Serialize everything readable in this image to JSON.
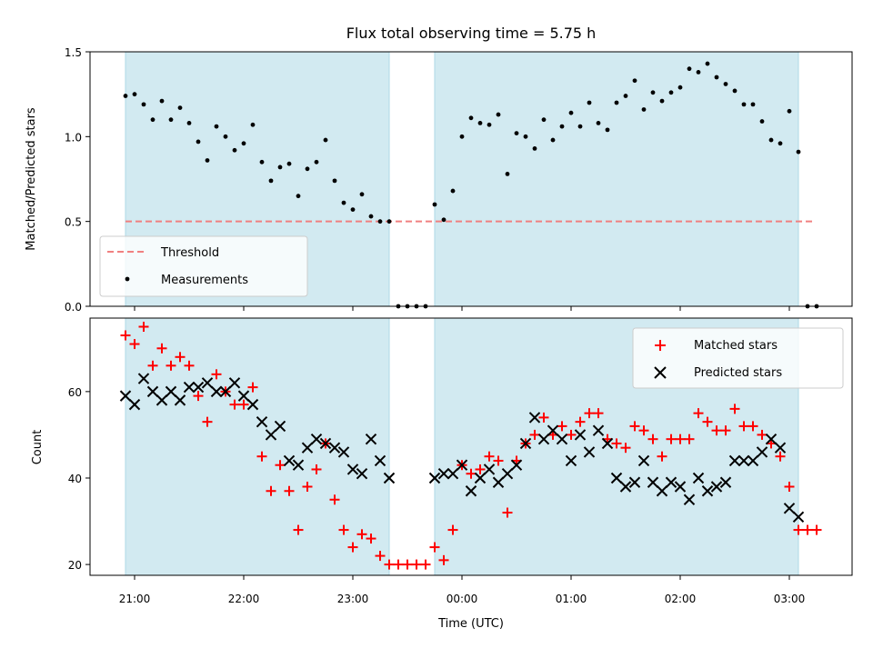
{
  "chart_data": [
    {
      "type": "scatter",
      "title": "Flux total observing time = 5.75 h",
      "xlabel": "",
      "ylabel": "Matched/Predicted stars",
      "ylim": [
        0,
        1.5
      ],
      "yticks": [
        "0.0",
        "0.5",
        "1.0",
        "1.5"
      ],
      "shaded_spans": [
        [
          "20:55",
          "23:20"
        ],
        [
          "23:45",
          "03:05"
        ]
      ],
      "threshold": {
        "name": "Threshold",
        "y": 0.5,
        "x": [
          "20:55",
          "03:13"
        ],
        "color": "#f08080"
      },
      "legend": {
        "placement": "lower-left",
        "entries": [
          "Threshold",
          "Measurements"
        ]
      },
      "series": [
        {
          "name": "Measurements",
          "color": "#000000",
          "points": [
            [
              "20:55",
              1.24
            ],
            [
              "21:00",
              1.25
            ],
            [
              "21:05",
              1.19
            ],
            [
              "21:10",
              1.1
            ],
            [
              "21:15",
              1.21
            ],
            [
              "21:20",
              1.1
            ],
            [
              "21:25",
              1.17
            ],
            [
              "21:30",
              1.08
            ],
            [
              "21:35",
              0.97
            ],
            [
              "21:40",
              0.86
            ],
            [
              "21:45",
              1.06
            ],
            [
              "21:50",
              1.0
            ],
            [
              "21:55",
              0.92
            ],
            [
              "22:00",
              0.96
            ],
            [
              "22:05",
              1.07
            ],
            [
              "22:10",
              0.85
            ],
            [
              "22:15",
              0.74
            ],
            [
              "22:20",
              0.82
            ],
            [
              "22:25",
              0.84
            ],
            [
              "22:30",
              0.65
            ],
            [
              "22:35",
              0.81
            ],
            [
              "22:40",
              0.85
            ],
            [
              "22:45",
              0.98
            ],
            [
              "22:50",
              0.74
            ],
            [
              "22:55",
              0.61
            ],
            [
              "23:00",
              0.57
            ],
            [
              "23:05",
              0.66
            ],
            [
              "23:10",
              0.53
            ],
            [
              "23:15",
              0.5
            ],
            [
              "23:20",
              0.5
            ],
            [
              "23:25",
              0.0
            ],
            [
              "23:30",
              0.0
            ],
            [
              "23:35",
              0.0
            ],
            [
              "23:40",
              0.0
            ],
            [
              "23:45",
              0.6
            ],
            [
              "23:50",
              0.51
            ],
            [
              "23:55",
              0.68
            ],
            [
              "00:00",
              1.0
            ],
            [
              "00:05",
              1.11
            ],
            [
              "00:10",
              1.08
            ],
            [
              "00:15",
              1.07
            ],
            [
              "00:20",
              1.13
            ],
            [
              "00:25",
              0.78
            ],
            [
              "00:30",
              1.02
            ],
            [
              "00:35",
              1.0
            ],
            [
              "00:40",
              0.93
            ],
            [
              "00:45",
              1.1
            ],
            [
              "00:50",
              0.98
            ],
            [
              "00:55",
              1.06
            ],
            [
              "01:00",
              1.14
            ],
            [
              "01:05",
              1.06
            ],
            [
              "01:10",
              1.2
            ],
            [
              "01:15",
              1.08
            ],
            [
              "01:20",
              1.04
            ],
            [
              "01:25",
              1.2
            ],
            [
              "01:30",
              1.24
            ],
            [
              "01:35",
              1.33
            ],
            [
              "01:40",
              1.16
            ],
            [
              "01:45",
              1.26
            ],
            [
              "01:50",
              1.21
            ],
            [
              "01:55",
              1.26
            ],
            [
              "02:00",
              1.29
            ],
            [
              "02:05",
              1.4
            ],
            [
              "02:10",
              1.38
            ],
            [
              "02:15",
              1.43
            ],
            [
              "02:20",
              1.35
            ],
            [
              "02:25",
              1.31
            ],
            [
              "02:30",
              1.27
            ],
            [
              "02:35",
              1.19
            ],
            [
              "02:40",
              1.19
            ],
            [
              "02:45",
              1.09
            ],
            [
              "02:50",
              0.98
            ],
            [
              "02:55",
              0.96
            ],
            [
              "03:00",
              1.15
            ],
            [
              "03:05",
              0.91
            ],
            [
              "03:10",
              0.0
            ],
            [
              "03:15",
              0.0
            ]
          ]
        }
      ]
    },
    {
      "type": "scatter",
      "title": "",
      "xlabel": "Time (UTC)",
      "ylabel": "Count",
      "ylim": [
        17.5,
        77
      ],
      "yticks": [
        "20",
        "40",
        "60"
      ],
      "xticks": [
        "21:00",
        "22:00",
        "23:00",
        "00:00",
        "01:00",
        "02:00",
        "03:00"
      ],
      "shaded_spans": [
        [
          "20:55",
          "23:20"
        ],
        [
          "23:45",
          "03:05"
        ]
      ],
      "legend": {
        "placement": "upper-right",
        "entries": [
          "Matched stars",
          "Predicted stars"
        ]
      },
      "series": [
        {
          "name": "Matched stars",
          "marker": "+",
          "color": "#ff0000",
          "points": [
            [
              "20:55",
              73
            ],
            [
              "21:00",
              71
            ],
            [
              "21:05",
              75
            ],
            [
              "21:10",
              66
            ],
            [
              "21:15",
              70
            ],
            [
              "21:20",
              66
            ],
            [
              "21:25",
              68
            ],
            [
              "21:30",
              66
            ],
            [
              "21:35",
              59
            ],
            [
              "21:40",
              53
            ],
            [
              "21:45",
              64
            ],
            [
              "21:50",
              60
            ],
            [
              "21:55",
              57
            ],
            [
              "22:00",
              57
            ],
            [
              "22:05",
              61
            ],
            [
              "22:10",
              45
            ],
            [
              "22:15",
              37
            ],
            [
              "22:20",
              43
            ],
            [
              "22:25",
              37
            ],
            [
              "22:30",
              28
            ],
            [
              "22:35",
              38
            ],
            [
              "22:40",
              42
            ],
            [
              "22:45",
              48
            ],
            [
              "22:50",
              35
            ],
            [
              "22:55",
              28
            ],
            [
              "23:00",
              24
            ],
            [
              "23:05",
              27
            ],
            [
              "23:10",
              26
            ],
            [
              "23:15",
              22
            ],
            [
              "23:20",
              20
            ],
            [
              "23:25",
              20
            ],
            [
              "23:30",
              20
            ],
            [
              "23:35",
              20
            ],
            [
              "23:40",
              20
            ],
            [
              "23:45",
              24
            ],
            [
              "23:50",
              21
            ],
            [
              "23:55",
              28
            ],
            [
              "00:00",
              43
            ],
            [
              "00:05",
              41
            ],
            [
              "00:10",
              42
            ],
            [
              "00:15",
              45
            ],
            [
              "00:20",
              44
            ],
            [
              "00:25",
              32
            ],
            [
              "00:30",
              44
            ],
            [
              "00:35",
              48
            ],
            [
              "00:40",
              50
            ],
            [
              "00:45",
              54
            ],
            [
              "00:50",
              50
            ],
            [
              "00:55",
              52
            ],
            [
              "01:00",
              50
            ],
            [
              "01:05",
              53
            ],
            [
              "01:10",
              55
            ],
            [
              "01:15",
              55
            ],
            [
              "01:20",
              49
            ],
            [
              "01:25",
              48
            ],
            [
              "01:30",
              47
            ],
            [
              "01:35",
              52
            ],
            [
              "01:40",
              51
            ],
            [
              "01:45",
              49
            ],
            [
              "01:50",
              45
            ],
            [
              "01:55",
              49
            ],
            [
              "02:00",
              49
            ],
            [
              "02:05",
              49
            ],
            [
              "02:10",
              55
            ],
            [
              "02:15",
              53
            ],
            [
              "02:20",
              51
            ],
            [
              "02:25",
              51
            ],
            [
              "02:30",
              56
            ],
            [
              "02:35",
              52
            ],
            [
              "02:40",
              52
            ],
            [
              "02:45",
              50
            ],
            [
              "02:50",
              48
            ],
            [
              "02:55",
              45
            ],
            [
              "03:00",
              38
            ],
            [
              "03:05",
              28
            ],
            [
              "03:10",
              28
            ],
            [
              "03:15",
              28
            ]
          ]
        },
        {
          "name": "Predicted stars",
          "marker": "x",
          "color": "#000000",
          "points": [
            [
              "20:55",
              59
            ],
            [
              "21:00",
              57
            ],
            [
              "21:05",
              63
            ],
            [
              "21:10",
              60
            ],
            [
              "21:15",
              58
            ],
            [
              "21:20",
              60
            ],
            [
              "21:25",
              58
            ],
            [
              "21:30",
              61
            ],
            [
              "21:35",
              61
            ],
            [
              "21:40",
              62
            ],
            [
              "21:45",
              60
            ],
            [
              "21:50",
              60
            ],
            [
              "21:55",
              62
            ],
            [
              "22:00",
              59
            ],
            [
              "22:05",
              57
            ],
            [
              "22:10",
              53
            ],
            [
              "22:15",
              50
            ],
            [
              "22:20",
              52
            ],
            [
              "22:25",
              44
            ],
            [
              "22:30",
              43
            ],
            [
              "22:35",
              47
            ],
            [
              "22:40",
              49
            ],
            [
              "22:45",
              48
            ],
            [
              "22:50",
              47
            ],
            [
              "22:55",
              46
            ],
            [
              "23:00",
              42
            ],
            [
              "23:05",
              41
            ],
            [
              "23:10",
              49
            ],
            [
              "23:15",
              44
            ],
            [
              "23:20",
              40
            ],
            [
              "23:45",
              40
            ],
            [
              "23:50",
              41
            ],
            [
              "23:55",
              41
            ],
            [
              "00:00",
              43
            ],
            [
              "00:05",
              37
            ],
            [
              "00:10",
              40
            ],
            [
              "00:15",
              42
            ],
            [
              "00:20",
              39
            ],
            [
              "00:25",
              41
            ],
            [
              "00:30",
              43
            ],
            [
              "00:35",
              48
            ],
            [
              "00:40",
              54
            ],
            [
              "00:45",
              49
            ],
            [
              "00:50",
              51
            ],
            [
              "00:55",
              49
            ],
            [
              "01:00",
              44
            ],
            [
              "01:05",
              50
            ],
            [
              "01:10",
              46
            ],
            [
              "01:15",
              51
            ],
            [
              "01:20",
              48
            ],
            [
              "01:25",
              40
            ],
            [
              "01:30",
              38
            ],
            [
              "01:35",
              39
            ],
            [
              "01:40",
              44
            ],
            [
              "01:45",
              39
            ],
            [
              "01:50",
              37
            ],
            [
              "01:55",
              39
            ],
            [
              "02:00",
              38
            ],
            [
              "02:05",
              35
            ],
            [
              "02:10",
              40
            ],
            [
              "02:15",
              37
            ],
            [
              "02:20",
              38
            ],
            [
              "02:25",
              39
            ],
            [
              "02:30",
              44
            ],
            [
              "02:35",
              44
            ],
            [
              "02:40",
              44
            ],
            [
              "02:45",
              46
            ],
            [
              "02:50",
              49
            ],
            [
              "02:55",
              47
            ],
            [
              "03:00",
              33
            ],
            [
              "03:05",
              31
            ]
          ]
        }
      ]
    }
  ],
  "colors": {
    "shade": "#add8e6",
    "threshold": "#f08080",
    "matched": "#ff0000",
    "predicted": "#000000"
  }
}
